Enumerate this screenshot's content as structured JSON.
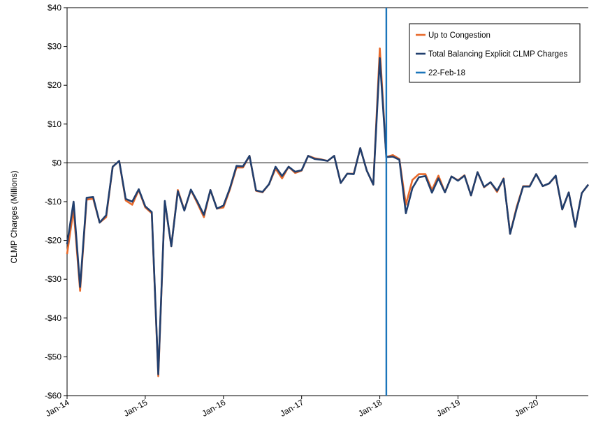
{
  "chart_data": {
    "type": "line",
    "title": "",
    "xlabel": "",
    "ylabel": "CLMP Charges (Millions)",
    "ylim": [
      -60,
      40
    ],
    "y_ticks": [
      40,
      30,
      20,
      10,
      0,
      -10,
      -20,
      -30,
      -40,
      -50,
      -60
    ],
    "y_tick_labels": [
      "$40",
      "$30",
      "$20",
      "$10",
      "$0",
      "-$10",
      "-$20",
      "-$30",
      "-$40",
      "-$50",
      "-$60"
    ],
    "x_start": "Jan-14",
    "x_end": "Aug-20",
    "x_tick_labels": [
      "Jan-14",
      "Jan-15",
      "Jan-16",
      "Jan-17",
      "Jan-18",
      "Jan-19",
      "Jan-20"
    ],
    "x_ticks": [
      0,
      12,
      24,
      36,
      48,
      60,
      72
    ],
    "grid": false,
    "legend_position": "top-right",
    "colors": {
      "up_to_congestion": "#E8692A",
      "total": "#213F6E",
      "vline": "#1B75BB",
      "zero_line": "#000000"
    },
    "series": [
      {
        "name": "Up to Congestion",
        "color": "#E8692A",
        "values": [
          -23.5,
          -12.0,
          -33.0,
          -9.5,
          -9.2,
          -15.4,
          -14.0,
          -1.0,
          0.5,
          -9.7,
          -10.8,
          -7.0,
          -11.5,
          -13.0,
          -55.0,
          -10.0,
          -21.5,
          -7.0,
          -12.2,
          -7.0,
          -10.4,
          -14.0,
          -7.0,
          -11.8,
          -11.5,
          -6.8,
          -1.2,
          -1.2,
          1.8,
          -7.2,
          -7.6,
          -5.5,
          -1.5,
          -4.0,
          -1.0,
          -2.6,
          -2.0,
          1.8,
          1.2,
          0.9,
          0.5,
          1.8,
          -5.2,
          -2.8,
          -2.8,
          3.8,
          -2.0,
          -5.6,
          29.5,
          1.5,
          2.0,
          1.0,
          -10.8,
          -4.4,
          -2.9,
          -2.9,
          -7.0,
          -3.3,
          -7.6,
          -3.5,
          -4.5,
          -3.2,
          -8.4,
          -2.4,
          -6.3,
          -5.0,
          -7.5,
          -4.0,
          -18.3,
          -11.4,
          -6.0,
          -6.0,
          -2.9,
          -6.0,
          -5.3,
          -3.4,
          -12.0,
          -7.6,
          -16.5,
          -7.8,
          -5.6
        ]
      },
      {
        "name": "Total Balancing Explicit CLMP Charges",
        "color": "#213F6E",
        "values": [
          -21.0,
          -10.0,
          -32.0,
          -9.0,
          -8.8,
          -15.4,
          -13.5,
          -1.0,
          0.5,
          -9.3,
          -10.0,
          -6.8,
          -11.2,
          -12.7,
          -54.5,
          -9.8,
          -21.5,
          -7.3,
          -12.3,
          -6.9,
          -10.0,
          -13.4,
          -7.0,
          -11.8,
          -11.0,
          -6.5,
          -0.8,
          -0.9,
          1.8,
          -7.1,
          -7.5,
          -5.5,
          -1.0,
          -3.4,
          -1.0,
          -2.3,
          -1.9,
          1.8,
          1.0,
          0.8,
          0.5,
          1.8,
          -5.2,
          -2.8,
          -2.9,
          3.8,
          -2.0,
          -5.6,
          27.0,
          1.5,
          1.6,
          0.8,
          -13.0,
          -6.5,
          -3.7,
          -3.4,
          -7.7,
          -4.0,
          -7.6,
          -3.5,
          -4.6,
          -3.3,
          -8.4,
          -2.4,
          -6.2,
          -5.0,
          -7.2,
          -4.1,
          -18.3,
          -11.8,
          -6.1,
          -6.1,
          -2.9,
          -6.0,
          -5.3,
          -3.3,
          -12.0,
          -7.6,
          -16.5,
          -7.8,
          -5.6
        ]
      }
    ],
    "vertical_line": {
      "name": "22-Feb-18",
      "x": 49.0
    }
  }
}
